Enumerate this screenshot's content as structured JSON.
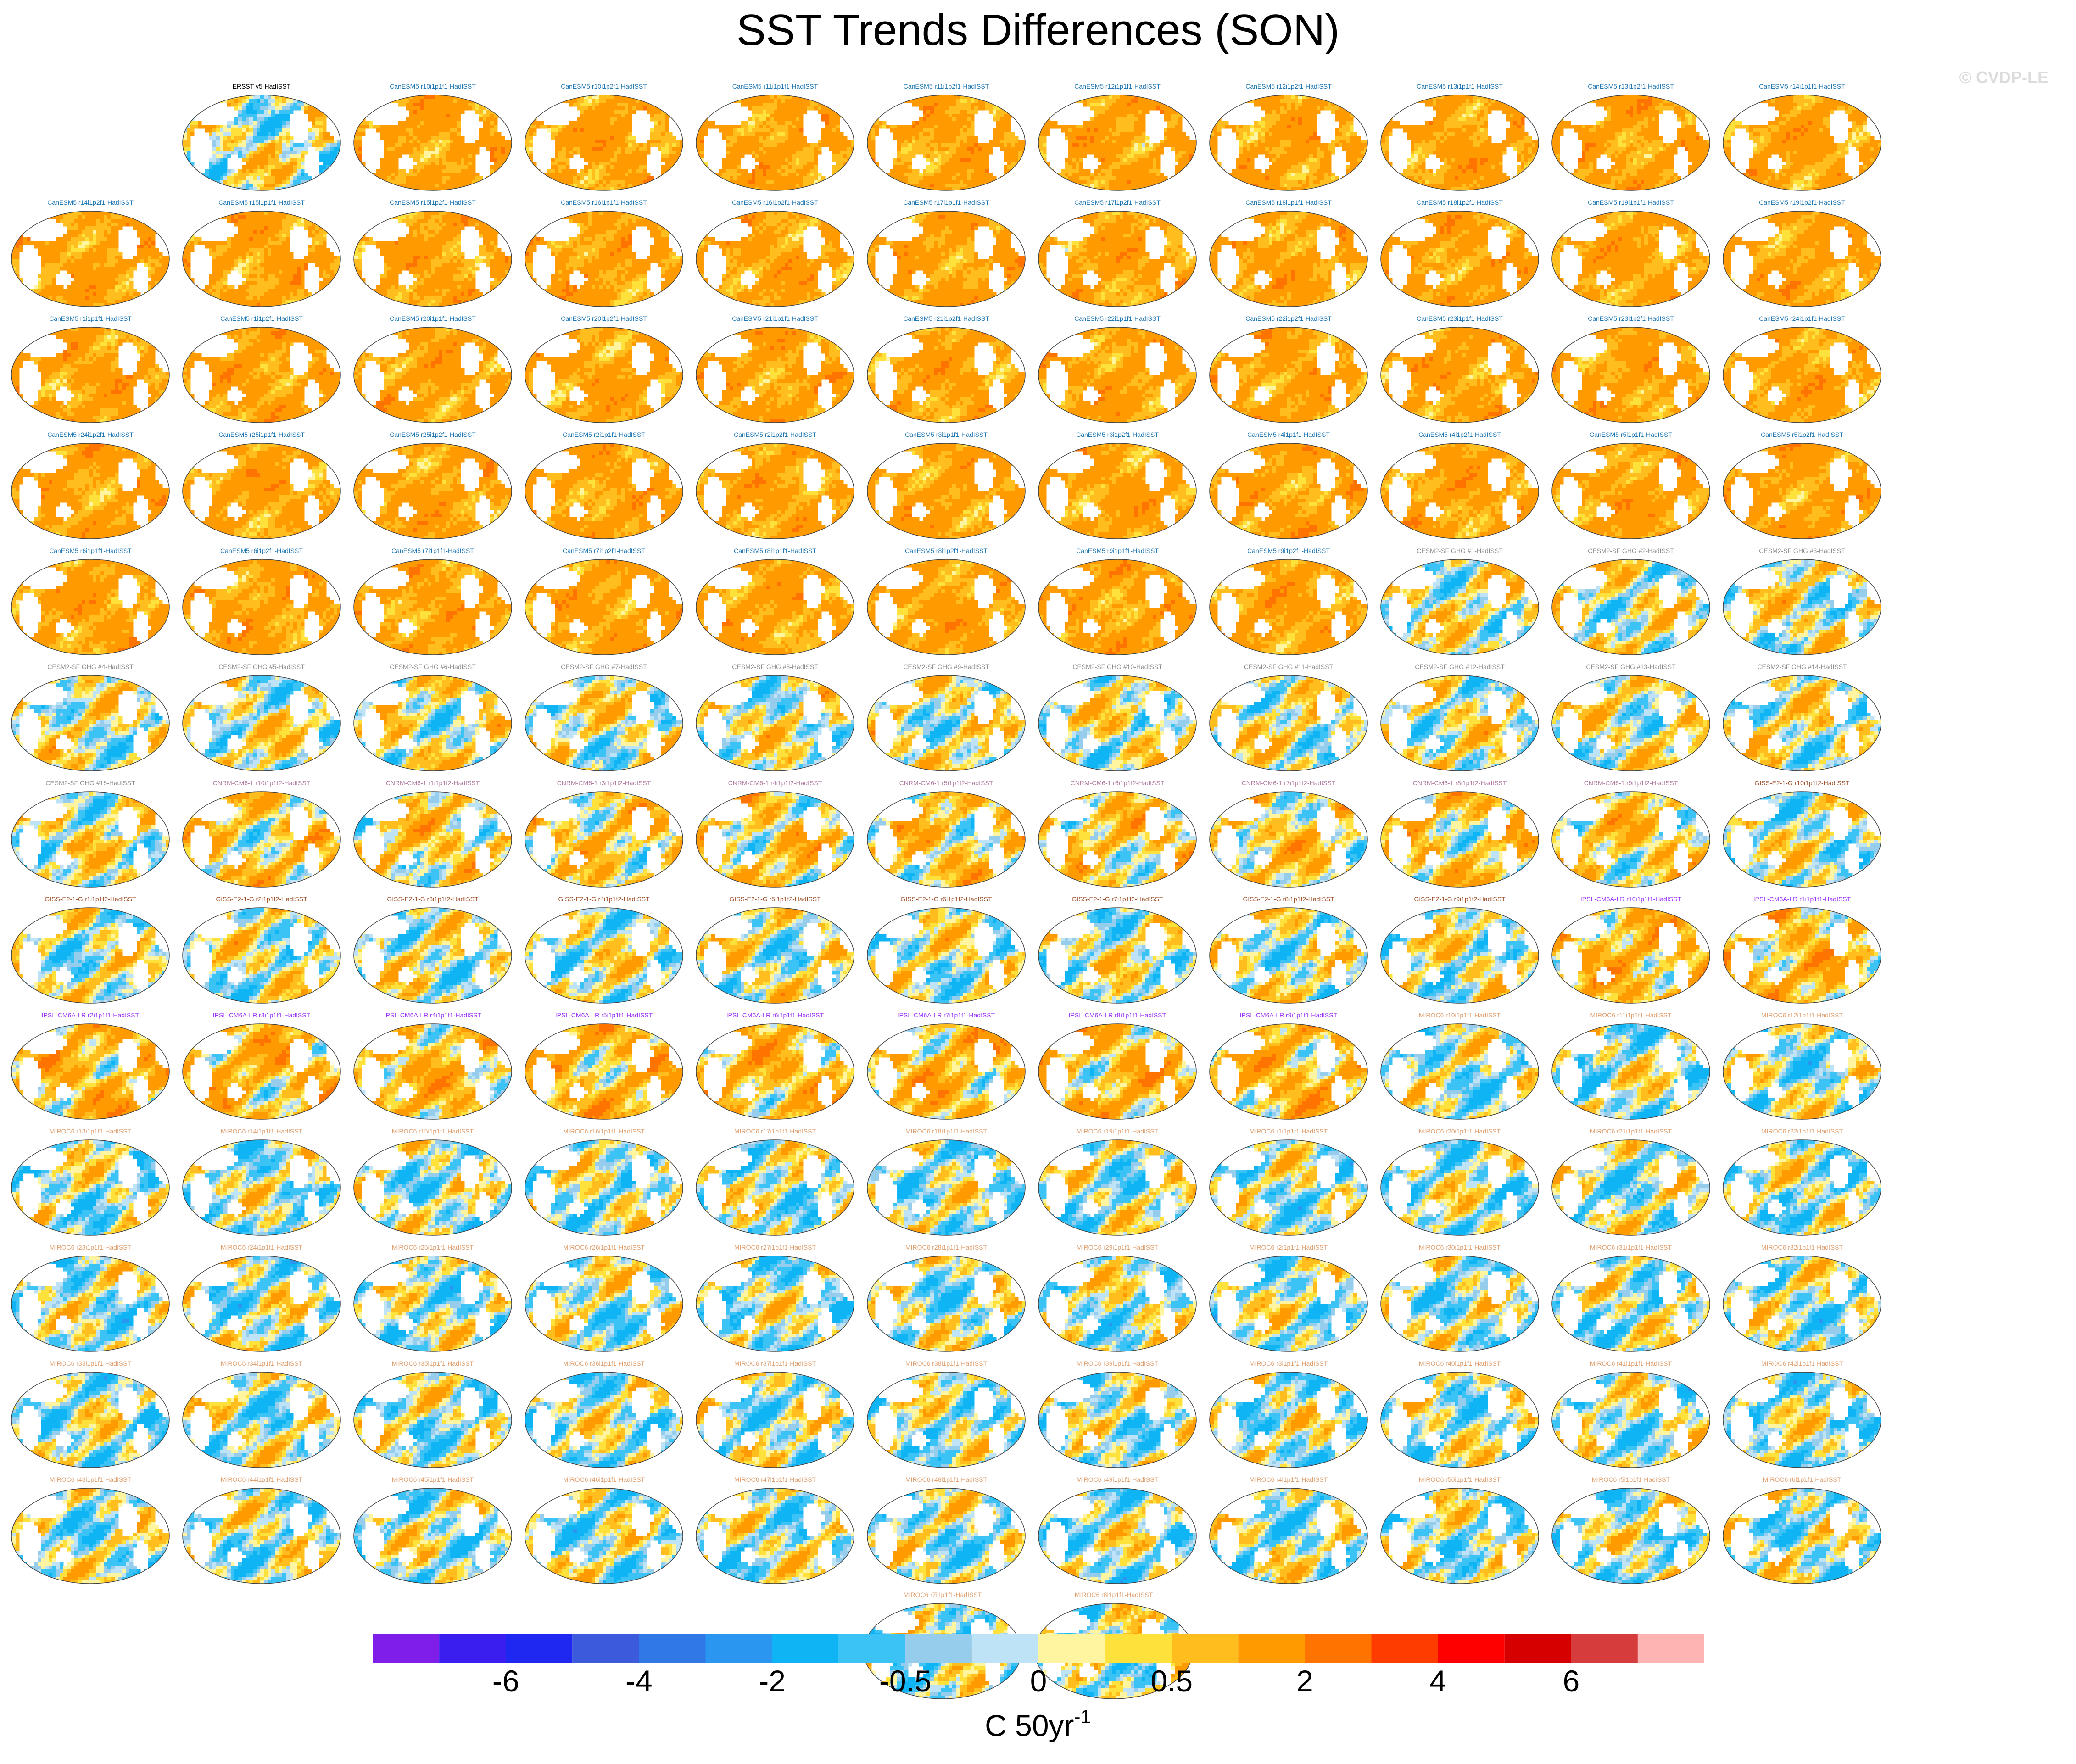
{
  "title": "SST Trends Differences (SON)",
  "watermark": "© CVDP-LE",
  "chart_data": {
    "type": "heatmap",
    "title": "SST Trends Differences (SON)",
    "projection": "global ellipse maps",
    "panels": [
      {
        "label": "ERSST v5-HadISST",
        "group": "obs"
      },
      {
        "label": "CanESM5 r10i1p1f1-HadISST",
        "group": "CanESM5"
      },
      {
        "label": "CanESM5 r10i1p2f1-HadISST",
        "group": "CanESM5"
      },
      {
        "label": "CanESM5 r11i1p1f1-HadISST",
        "group": "CanESM5"
      },
      {
        "label": "CanESM5 r11i1p2f1-HadISST",
        "group": "CanESM5"
      },
      {
        "label": "CanESM5 r12i1p1f1-HadISST",
        "group": "CanESM5"
      },
      {
        "label": "CanESM5 r12i1p2f1-HadISST",
        "group": "CanESM5"
      },
      {
        "label": "CanESM5 r13i1p1f1-HadISST",
        "group": "CanESM5"
      },
      {
        "label": "CanESM5 r13i1p2f1-HadISST",
        "group": "CanESM5"
      },
      {
        "label": "CanESM5 r14i1p1f1-HadISST",
        "group": "CanESM5"
      },
      {
        "label": "CanESM5 r14i1p2f1-HadISST",
        "group": "CanESM5"
      },
      {
        "label": "CanESM5 r15i1p1f1-HadISST",
        "group": "CanESM5"
      },
      {
        "label": "CanESM5 r15i1p2f1-HadISST",
        "group": "CanESM5"
      },
      {
        "label": "CanESM5 r16i1p1f1-HadISST",
        "group": "CanESM5"
      },
      {
        "label": "CanESM5 r16i1p2f1-HadISST",
        "group": "CanESM5"
      },
      {
        "label": "CanESM5 r17i1p1f1-HadISST",
        "group": "CanESM5"
      },
      {
        "label": "CanESM5 r17i1p2f1-HadISST",
        "group": "CanESM5"
      },
      {
        "label": "CanESM5 r18i1p1f1-HadISST",
        "group": "CanESM5"
      },
      {
        "label": "CanESM5 r18i1p2f1-HadISST",
        "group": "CanESM5"
      },
      {
        "label": "CanESM5 r19i1p1f1-HadISST",
        "group": "CanESM5"
      },
      {
        "label": "CanESM5 r19i1p2f1-HadISST",
        "group": "CanESM5"
      },
      {
        "label": "CanESM5 r1i1p1f1-HadISST",
        "group": "CanESM5"
      },
      {
        "label": "CanESM5 r1i1p2f1-HadISST",
        "group": "CanESM5"
      },
      {
        "label": "CanESM5 r20i1p1f1-HadISST",
        "group": "CanESM5"
      },
      {
        "label": "CanESM5 r20i1p2f1-HadISST",
        "group": "CanESM5"
      },
      {
        "label": "CanESM5 r21i1p1f1-HadISST",
        "group": "CanESM5"
      },
      {
        "label": "CanESM5 r21i1p2f1-HadISST",
        "group": "CanESM5"
      },
      {
        "label": "CanESM5 r22i1p1f1-HadISST",
        "group": "CanESM5"
      },
      {
        "label": "CanESM5 r22i1p2f1-HadISST",
        "group": "CanESM5"
      },
      {
        "label": "CanESM5 r23i1p1f1-HadISST",
        "group": "CanESM5"
      },
      {
        "label": "CanESM5 r23i1p2f1-HadISST",
        "group": "CanESM5"
      },
      {
        "label": "CanESM5 r24i1p1f1-HadISST",
        "group": "CanESM5"
      },
      {
        "label": "CanESM5 r24i1p2f1-HadISST",
        "group": "CanESM5"
      },
      {
        "label": "CanESM5 r25i1p1f1-HadISST",
        "group": "CanESM5"
      },
      {
        "label": "CanESM5 r25i1p2f1-HadISST",
        "group": "CanESM5"
      },
      {
        "label": "CanESM5 r2i1p1f1-HadISST",
        "group": "CanESM5"
      },
      {
        "label": "CanESM5 r2i1p2f1-HadISST",
        "group": "CanESM5"
      },
      {
        "label": "CanESM5 r3i1p1f1-HadISST",
        "group": "CanESM5"
      },
      {
        "label": "CanESM5 r3i1p2f1-HadISST",
        "group": "CanESM5"
      },
      {
        "label": "CanESM5 r4i1p1f1-HadISST",
        "group": "CanESM5"
      },
      {
        "label": "CanESM5 r4i1p2f1-HadISST",
        "group": "CanESM5"
      },
      {
        "label": "CanESM5 r5i1p1f1-HadISST",
        "group": "CanESM5"
      },
      {
        "label": "CanESM5 r5i1p2f1-HadISST",
        "group": "CanESM5"
      },
      {
        "label": "CanESM5 r6i1p1f1-HadISST",
        "group": "CanESM5"
      },
      {
        "label": "CanESM5 r6i1p2f1-HadISST",
        "group": "CanESM5"
      },
      {
        "label": "CanESM5 r7i1p1f1-HadISST",
        "group": "CanESM5"
      },
      {
        "label": "CanESM5 r7i1p2f1-HadISST",
        "group": "CanESM5"
      },
      {
        "label": "CanESM5 r8i1p1f1-HadISST",
        "group": "CanESM5"
      },
      {
        "label": "CanESM5 r8i1p2f1-HadISST",
        "group": "CanESM5"
      },
      {
        "label": "CanESM5 r9i1p1f1-HadISST",
        "group": "CanESM5"
      },
      {
        "label": "CanESM5 r9i1p2f1-HadISST",
        "group": "CanESM5"
      },
      {
        "label": "CESM2-SF GHG #1-HadISST",
        "group": "CESM2"
      },
      {
        "label": "CESM2-SF GHG #2-HadISST",
        "group": "CESM2"
      },
      {
        "label": "CESM2-SF GHG #3-HadISST",
        "group": "CESM2"
      },
      {
        "label": "CESM2-SF GHG #4-HadISST",
        "group": "CESM2"
      },
      {
        "label": "CESM2-SF GHG #5-HadISST",
        "group": "CESM2"
      },
      {
        "label": "CESM2-SF GHG #6-HadISST",
        "group": "CESM2"
      },
      {
        "label": "CESM2-SF GHG #7-HadISST",
        "group": "CESM2"
      },
      {
        "label": "CESM2-SF GHG #8-HadISST",
        "group": "CESM2"
      },
      {
        "label": "CESM2-SF GHG #9-HadISST",
        "group": "CESM2"
      },
      {
        "label": "CESM2-SF GHG #10-HadISST",
        "group": "CESM2"
      },
      {
        "label": "CESM2-SF GHG #11-HadISST",
        "group": "CESM2"
      },
      {
        "label": "CESM2-SF GHG #12-HadISST",
        "group": "CESM2"
      },
      {
        "label": "CESM2-SF GHG #13-HadISST",
        "group": "CESM2"
      },
      {
        "label": "CESM2-SF GHG #14-HadISST",
        "group": "CESM2"
      },
      {
        "label": "CESM2-SF GHG #15-HadISST",
        "group": "CESM2"
      },
      {
        "label": "CNRM-CM6-1 r10i1p1f2-HadISST",
        "group": "CNRM"
      },
      {
        "label": "CNRM-CM6-1 r1i1p1f2-HadISST",
        "group": "CNRM"
      },
      {
        "label": "CNRM-CM6-1 r3i1p1f2-HadISST",
        "group": "CNRM"
      },
      {
        "label": "CNRM-CM6-1 r4i1p1f2-HadISST",
        "group": "CNRM"
      },
      {
        "label": "CNRM-CM6-1 r5i1p1f2-HadISST",
        "group": "CNRM"
      },
      {
        "label": "CNRM-CM6-1 r6i1p1f2-HadISST",
        "group": "CNRM"
      },
      {
        "label": "CNRM-CM6-1 r7i1p1f2-HadISST",
        "group": "CNRM"
      },
      {
        "label": "CNRM-CM6-1 r8i1p1f2-HadISST",
        "group": "CNRM"
      },
      {
        "label": "CNRM-CM6-1 r9i1p1f2-HadISST",
        "group": "CNRM"
      },
      {
        "label": "GISS-E2-1-G r10i1p1f2-HadISST",
        "group": "GISS"
      },
      {
        "label": "GISS-E2-1-G r1i1p1f2-HadISST",
        "group": "GISS"
      },
      {
        "label": "GISS-E2-1-G r2i1p1f2-HadISST",
        "group": "GISS"
      },
      {
        "label": "GISS-E2-1-G r3i1p1f2-HadISST",
        "group": "GISS"
      },
      {
        "label": "GISS-E2-1-G r4i1p1f2-HadISST",
        "group": "GISS"
      },
      {
        "label": "GISS-E2-1-G r5i1p1f2-HadISST",
        "group": "GISS"
      },
      {
        "label": "GISS-E2-1-G r6i1p1f2-HadISST",
        "group": "GISS"
      },
      {
        "label": "GISS-E2-1-G r7i1p1f2-HadISST",
        "group": "GISS"
      },
      {
        "label": "GISS-E2-1-G r8i1p1f2-HadISST",
        "group": "GISS"
      },
      {
        "label": "GISS-E2-1-G r9i1p1f2-HadISST",
        "group": "GISS"
      },
      {
        "label": "IPSL-CM6A-LR r10i1p1f1-HadISST",
        "group": "IPSL"
      },
      {
        "label": "IPSL-CM6A-LR r1i1p1f1-HadISST",
        "group": "IPSL"
      },
      {
        "label": "IPSL-CM6A-LR r2i1p1f1-HadISST",
        "group": "IPSL"
      },
      {
        "label": "IPSL-CM6A-LR r3i1p1f1-HadISST",
        "group": "IPSL"
      },
      {
        "label": "IPSL-CM6A-LR r4i1p1f1-HadISST",
        "group": "IPSL"
      },
      {
        "label": "IPSL-CM6A-LR r5i1p1f1-HadISST",
        "group": "IPSL"
      },
      {
        "label": "IPSL-CM6A-LR r6i1p1f1-HadISST",
        "group": "IPSL"
      },
      {
        "label": "IPSL-CM6A-LR r7i1p1f1-HadISST",
        "group": "IPSL"
      },
      {
        "label": "IPSL-CM6A-LR r8i1p1f1-HadISST",
        "group": "IPSL"
      },
      {
        "label": "IPSL-CM6A-LR r9i1p1f1-HadISST",
        "group": "IPSL"
      },
      {
        "label": "MIROC6 r10i1p1f1-HadISST",
        "group": "MIROC6"
      },
      {
        "label": "MIROC6 r11i1p1f1-HadISST",
        "group": "MIROC6"
      },
      {
        "label": "MIROC6 r12i1p1f1-HadISST",
        "group": "MIROC6"
      },
      {
        "label": "MIROC6 r13i1p1f1-HadISST",
        "group": "MIROC6"
      },
      {
        "label": "MIROC6 r14i1p1f1-HadISST",
        "group": "MIROC6"
      },
      {
        "label": "MIROC6 r15i1p1f1-HadISST",
        "group": "MIROC6"
      },
      {
        "label": "MIROC6 r16i1p1f1-HadISST",
        "group": "MIROC6"
      },
      {
        "label": "MIROC6 r17i1p1f1-HadISST",
        "group": "MIROC6"
      },
      {
        "label": "MIROC6 r18i1p1f1-HadISST",
        "group": "MIROC6"
      },
      {
        "label": "MIROC6 r19i1p1f1-HadISST",
        "group": "MIROC6"
      },
      {
        "label": "MIROC6 r1i1p1f1-HadISST",
        "group": "MIROC6"
      },
      {
        "label": "MIROC6 r20i1p1f1-HadISST",
        "group": "MIROC6"
      },
      {
        "label": "MIROC6 r21i1p1f1-HadISST",
        "group": "MIROC6"
      },
      {
        "label": "MIROC6 r22i1p1f1-HadISST",
        "group": "MIROC6"
      },
      {
        "label": "MIROC6 r23i1p1f1-HadISST",
        "group": "MIROC6"
      },
      {
        "label": "MIROC6 r24i1p1f1-HadISST",
        "group": "MIROC6"
      },
      {
        "label": "MIROC6 r25i1p1f1-HadISST",
        "group": "MIROC6"
      },
      {
        "label": "MIROC6 r26i1p1f1-HadISST",
        "group": "MIROC6"
      },
      {
        "label": "MIROC6 r27i1p1f1-HadISST",
        "group": "MIROC6"
      },
      {
        "label": "MIROC6 r28i1p1f1-HadISST",
        "group": "MIROC6"
      },
      {
        "label": "MIROC6 r29i1p1f1-HadISST",
        "group": "MIROC6"
      },
      {
        "label": "MIROC6 r2i1p1f1-HadISST",
        "group": "MIROC6"
      },
      {
        "label": "MIROC6 r30i1p1f1-HadISST",
        "group": "MIROC6"
      },
      {
        "label": "MIROC6 r31i1p1f1-HadISST",
        "group": "MIROC6"
      },
      {
        "label": "MIROC6 r32i1p1f1-HadISST",
        "group": "MIROC6"
      },
      {
        "label": "MIROC6 r33i1p1f1-HadISST",
        "group": "MIROC6"
      },
      {
        "label": "MIROC6 r34i1p1f1-HadISST",
        "group": "MIROC6"
      },
      {
        "label": "MIROC6 r35i1p1f1-HadISST",
        "group": "MIROC6"
      },
      {
        "label": "MIROC6 r36i1p1f1-HadISST",
        "group": "MIROC6"
      },
      {
        "label": "MIROC6 r37i1p1f1-HadISST",
        "group": "MIROC6"
      },
      {
        "label": "MIROC6 r38i1p1f1-HadISST",
        "group": "MIROC6"
      },
      {
        "label": "MIROC6 r39i1p1f1-HadISST",
        "group": "MIROC6"
      },
      {
        "label": "MIROC6 r3i1p1f1-HadISST",
        "group": "MIROC6"
      },
      {
        "label": "MIROC6 r40i1p1f1-HadISST",
        "group": "MIROC6"
      },
      {
        "label": "MIROC6 r41i1p1f1-HadISST",
        "group": "MIROC6"
      },
      {
        "label": "MIROC6 r42i1p1f1-HadISST",
        "group": "MIROC6"
      },
      {
        "label": "MIROC6 r43i1p1f1-HadISST",
        "group": "MIROC6"
      },
      {
        "label": "MIROC6 r44i1p1f1-HadISST",
        "group": "MIROC6"
      },
      {
        "label": "MIROC6 r45i1p1f1-HadISST",
        "group": "MIROC6"
      },
      {
        "label": "MIROC6 r46i1p1f1-HadISST",
        "group": "MIROC6"
      },
      {
        "label": "MIROC6 r47i1p1f1-HadISST",
        "group": "MIROC6"
      },
      {
        "label": "MIROC6 r48i1p1f1-HadISST",
        "group": "MIROC6"
      },
      {
        "label": "MIROC6 r49i1p1f1-HadISST",
        "group": "MIROC6"
      },
      {
        "label": "MIROC6 r4i1p1f1-HadISST",
        "group": "MIROC6"
      },
      {
        "label": "MIROC6 r50i1p1f1-HadISST",
        "group": "MIROC6"
      },
      {
        "label": "MIROC6 r5i1p1f1-HadISST",
        "group": "MIROC6"
      },
      {
        "label": "MIROC6 r6i1p1f1-HadISST",
        "group": "MIROC6"
      },
      {
        "label": "MIROC6 r7i1p1f1-HadISST",
        "group": "MIROC6"
      },
      {
        "label": "MIROC6 r8i1p1f1-HadISST",
        "group": "MIROC6"
      },
      {
        "label": "MIROC6 r9i1p1f1-HadISST",
        "group": "MIROC6"
      }
    ],
    "group_colors": {
      "obs": "#000000",
      "CanESM5": "#1f77b4",
      "CESM2": "#8c8c8c",
      "CNRM": "#b07aa1",
      "GISS": "#a0522d",
      "IPSL": "#9b30ff",
      "MIROC6": "#e0a070"
    },
    "panel_tendency": {
      "obs": 0.1,
      "CanESM5": 1.2,
      "CESM2": 0.15,
      "CNRM": 0.5,
      "GISS": 0.05,
      "IPSL": 0.8,
      "MIROC6": -0.1
    },
    "colorbar": {
      "levels": [
        -7,
        -6,
        -5,
        -4,
        -3,
        -2,
        -1,
        -0.5,
        -0.25,
        0,
        0.25,
        0.5,
        1,
        2,
        3,
        4,
        5,
        6,
        7
      ],
      "colors": [
        "#7f1ee8",
        "#3a1ef0",
        "#1e28f0",
        "#3c5adc",
        "#2f78e6",
        "#2a96f0",
        "#0fb4f5",
        "#3cc3f5",
        "#96cdec",
        "#bee2f6",
        "#fff5a0",
        "#ffe13c",
        "#ffbe1e",
        "#ff9b00",
        "#ff7300",
        "#ff3c00",
        "#ff0000",
        "#d70000",
        "#d73c3c",
        "#ffb4b4"
      ],
      "tick_labels": [
        "-6",
        "-4",
        "-2",
        "-0.5",
        "0",
        "0.5",
        "2",
        "4",
        "6"
      ],
      "tick_values": [
        -6,
        -4,
        -2,
        -0.5,
        0,
        0.5,
        2,
        4,
        6
      ],
      "unit": "C 50yr",
      "unit_sup": "-1"
    }
  }
}
